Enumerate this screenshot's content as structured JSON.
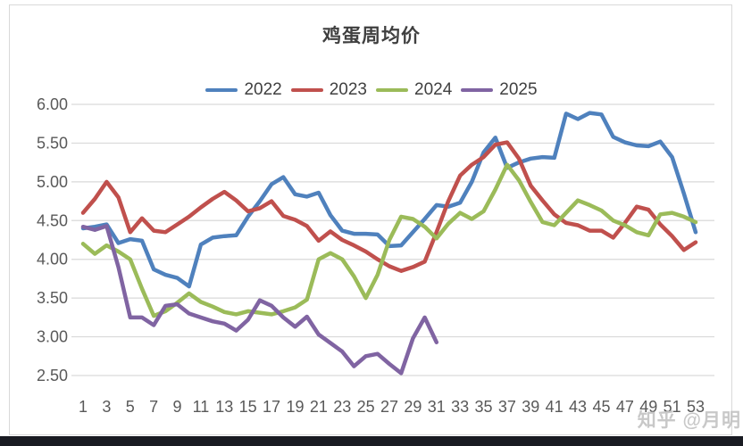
{
  "page": {
    "watermark": "知乎 @月明"
  },
  "chart": {
    "title": "鸡蛋周均价",
    "colors": {
      "grid": "#d9d9d9",
      "tick_text": "#595959",
      "title_text": "#3f3f3f",
      "series_2022": "#4F81BD",
      "series_2023": "#C0504D",
      "series_2024": "#9BBB59",
      "series_2025": "#8064A2"
    }
  },
  "chart_data": {
    "type": "line",
    "title": "鸡蛋周均价",
    "xlabel": "",
    "ylabel": "",
    "x_unit": "week of year",
    "xlim": [
      1,
      53
    ],
    "ylim": [
      2.5,
      6.0
    ],
    "grid": "horizontal",
    "legend_position": "top-center",
    "y_ticks": [
      6.0,
      5.5,
      5.0,
      4.5,
      4.0,
      3.5,
      3.0,
      2.5
    ],
    "y_tick_labels": [
      "6.00",
      "5.50",
      "5.00",
      "4.50",
      "4.00",
      "3.50",
      "3.00",
      "2.50"
    ],
    "x_ticks": [
      1,
      3,
      5,
      7,
      9,
      11,
      13,
      15,
      17,
      19,
      21,
      23,
      25,
      27,
      29,
      31,
      33,
      35,
      37,
      39,
      41,
      43,
      45,
      47,
      49,
      51,
      53
    ],
    "x_tick_labels": [
      "1",
      "3",
      "5",
      "7",
      "9",
      "11",
      "13",
      "15",
      "17",
      "19",
      "21",
      "23",
      "25",
      "27",
      "29",
      "31",
      "33",
      "35",
      "37",
      "39",
      "41",
      "43",
      "45",
      "47",
      "49",
      "51",
      "53"
    ],
    "series": [
      {
        "name": "2022",
        "color": "#4F81BD",
        "start_week": 1,
        "values": [
          4.4,
          4.42,
          4.45,
          4.21,
          4.26,
          4.24,
          3.87,
          3.8,
          3.76,
          3.65,
          4.19,
          4.28,
          4.3,
          4.31,
          4.55,
          4.75,
          4.97,
          5.06,
          4.84,
          4.81,
          4.86,
          4.57,
          4.37,
          4.33,
          4.33,
          4.32,
          4.17,
          4.18,
          4.35,
          4.52,
          4.7,
          4.68,
          4.73,
          5.0,
          5.38,
          5.57,
          5.18,
          5.25,
          5.3,
          5.32,
          5.31,
          5.88,
          5.81,
          5.89,
          5.87,
          5.58,
          5.51,
          5.47,
          5.46,
          5.52,
          5.32,
          4.85,
          4.35
        ]
      },
      {
        "name": "2023",
        "color": "#C0504D",
        "start_week": 1,
        "values": [
          4.6,
          4.78,
          5.0,
          4.8,
          4.35,
          4.53,
          4.37,
          4.35,
          4.45,
          4.55,
          4.67,
          4.78,
          4.87,
          4.76,
          4.62,
          4.66,
          4.75,
          4.56,
          4.51,
          4.43,
          4.24,
          4.36,
          4.25,
          4.18,
          4.1,
          4.0,
          3.91,
          3.85,
          3.9,
          3.97,
          4.35,
          4.75,
          5.08,
          5.22,
          5.32,
          5.48,
          5.51,
          5.3,
          4.95,
          4.76,
          4.58,
          4.47,
          4.44,
          4.37,
          4.37,
          4.28,
          4.47,
          4.68,
          4.64,
          4.45,
          4.3,
          4.12,
          4.22
        ]
      },
      {
        "name": "2024",
        "color": "#9BBB59",
        "start_week": 1,
        "values": [
          4.2,
          4.07,
          4.18,
          4.1,
          4.0,
          3.62,
          3.27,
          3.33,
          3.44,
          3.56,
          3.45,
          3.39,
          3.32,
          3.29,
          3.33,
          3.31,
          3.29,
          3.33,
          3.38,
          3.48,
          4.0,
          4.08,
          4.0,
          3.78,
          3.5,
          3.8,
          4.25,
          4.55,
          4.52,
          4.42,
          4.27,
          4.46,
          4.6,
          4.52,
          4.62,
          4.9,
          5.22,
          5.02,
          4.74,
          4.48,
          4.44,
          4.6,
          4.76,
          4.7,
          4.63,
          4.5,
          4.44,
          4.35,
          4.31,
          4.58,
          4.6,
          4.55,
          4.48
        ]
      },
      {
        "name": "2025",
        "color": "#8064A2",
        "start_week": 1,
        "values": [
          4.42,
          4.38,
          4.43,
          3.9,
          3.25,
          3.25,
          3.15,
          3.4,
          3.42,
          3.3,
          3.25,
          3.2,
          3.17,
          3.08,
          3.22,
          3.47,
          3.4,
          3.25,
          3.13,
          3.26,
          3.03,
          2.92,
          2.81,
          2.62,
          2.75,
          2.78,
          2.65,
          2.53,
          2.98,
          3.25,
          2.93
        ]
      }
    ]
  }
}
